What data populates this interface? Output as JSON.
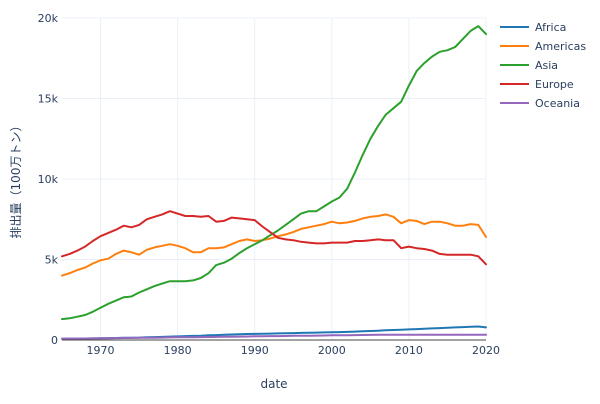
{
  "chart_data": {
    "type": "line",
    "title": "",
    "xlabel": "date",
    "ylabel": "排出量（100万トン）",
    "xlim": [
      1965,
      2020
    ],
    "ylim": [
      0,
      20000
    ],
    "xticks": [
      1970,
      1980,
      1990,
      2000,
      2010,
      2020
    ],
    "xtick_labels": [
      "1970",
      "1980",
      "1990",
      "2000",
      "2010",
      "2020"
    ],
    "yticks": [
      0,
      5000,
      10000,
      15000,
      20000
    ],
    "ytick_labels": [
      "0",
      "5k",
      "10k",
      "15k",
      "20k"
    ],
    "grid": true,
    "legend_position": "top-right",
    "x": [
      1965,
      1966,
      1967,
      1968,
      1969,
      1970,
      1971,
      1972,
      1973,
      1974,
      1975,
      1976,
      1977,
      1978,
      1979,
      1980,
      1981,
      1982,
      1983,
      1984,
      1985,
      1986,
      1987,
      1988,
      1989,
      1990,
      1991,
      1992,
      1993,
      1994,
      1995,
      1996,
      1997,
      1998,
      1999,
      2000,
      2001,
      2002,
      2003,
      2004,
      2005,
      2006,
      2007,
      2008,
      2009,
      2010,
      2011,
      2012,
      2013,
      2014,
      2015,
      2016,
      2017,
      2018,
      2019,
      2020
    ],
    "series": [
      {
        "name": "Africa",
        "color": "#1f77b4",
        "values": [
          80,
          85,
          90,
          95,
          100,
          110,
          115,
          125,
          135,
          140,
          150,
          165,
          180,
          195,
          210,
          225,
          240,
          255,
          270,
          290,
          305,
          320,
          340,
          355,
          370,
          380,
          390,
          400,
          410,
          420,
          430,
          440,
          450,
          460,
          470,
          480,
          490,
          500,
          520,
          540,
          560,
          580,
          600,
          620,
          640,
          660,
          680,
          700,
          720,
          740,
          760,
          780,
          800,
          820,
          840,
          780
        ]
      },
      {
        "name": "Americas",
        "color": "#ff7f0e",
        "values": [
          4000,
          4150,
          4350,
          4500,
          4750,
          4950,
          5050,
          5350,
          5550,
          5450,
          5300,
          5600,
          5750,
          5850,
          5950,
          5850,
          5700,
          5450,
          5450,
          5700,
          5700,
          5750,
          5950,
          6150,
          6250,
          6150,
          6200,
          6300,
          6450,
          6550,
          6700,
          6900,
          7000,
          7100,
          7200,
          7350,
          7250,
          7300,
          7400,
          7550,
          7650,
          7700,
          7800,
          7650,
          7250,
          7450,
          7400,
          7200,
          7350,
          7350,
          7250,
          7100,
          7100,
          7200,
          7150,
          6400
        ]
      },
      {
        "name": "Asia",
        "color": "#2ca02c",
        "values": [
          1300,
          1350,
          1450,
          1550,
          1750,
          2000,
          2250,
          2450,
          2650,
          2700,
          2950,
          3150,
          3350,
          3500,
          3650,
          3650,
          3650,
          3700,
          3850,
          4150,
          4650,
          4800,
          5050,
          5400,
          5700,
          5950,
          6200,
          6500,
          6800,
          7150,
          7500,
          7850,
          8000,
          8000,
          8300,
          8600,
          8850,
          9400,
          10400,
          11500,
          12500,
          13300,
          14000,
          14400,
          14800,
          15800,
          16700,
          17200,
          17600,
          17900,
          18000,
          18200,
          18700,
          19200,
          19500,
          19000
        ]
      },
      {
        "name": "Europe",
        "color": "#d62728",
        "values": [
          5200,
          5350,
          5550,
          5800,
          6150,
          6450,
          6650,
          6850,
          7100,
          7000,
          7150,
          7500,
          7650,
          7800,
          8000,
          7850,
          7700,
          7700,
          7650,
          7700,
          7350,
          7400,
          7600,
          7550,
          7500,
          7450,
          7050,
          6700,
          6350,
          6250,
          6200,
          6100,
          6050,
          6000,
          6000,
          6050,
          6050,
          6050,
          6150,
          6150,
          6200,
          6250,
          6200,
          6200,
          5700,
          5800,
          5700,
          5650,
          5550,
          5350,
          5300,
          5300,
          5300,
          5300,
          5200,
          4700
        ]
      },
      {
        "name": "Oceania",
        "color": "#9467bd",
        "values": [
          80,
          85,
          90,
          95,
          100,
          105,
          110,
          115,
          125,
          130,
          135,
          140,
          145,
          150,
          160,
          165,
          170,
          175,
          180,
          185,
          190,
          200,
          205,
          210,
          220,
          230,
          235,
          240,
          245,
          250,
          260,
          265,
          270,
          275,
          280,
          290,
          295,
          300,
          305,
          310,
          315,
          320,
          325,
          330,
          330,
          330,
          330,
          330,
          330,
          330,
          330,
          330,
          330,
          330,
          330,
          320
        ]
      }
    ]
  }
}
